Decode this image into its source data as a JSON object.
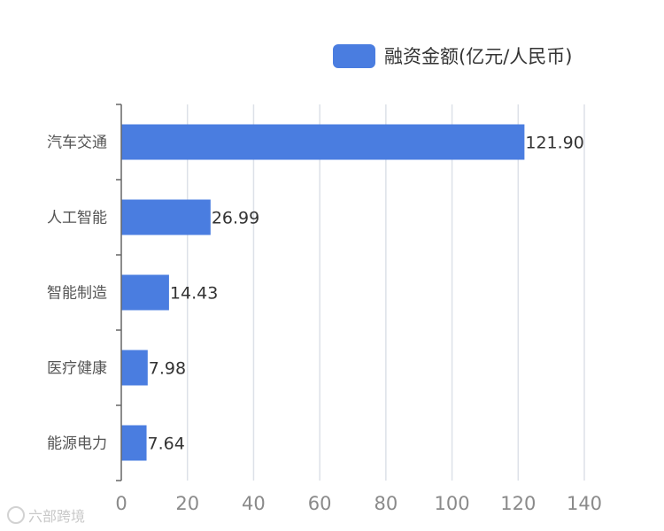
{
  "chart_data": {
    "type": "bar",
    "orientation": "horizontal",
    "categories": [
      "汽车交通",
      "人工智能",
      "智能制造",
      "医疗健康",
      "能源电力"
    ],
    "series": [
      {
        "name": "融资金额(亿元/人民币)",
        "values": [
          121.9,
          26.99,
          14.43,
          7.98,
          7.64
        ]
      }
    ],
    "data_labels": [
      "121.90",
      "26.99",
      "14.43",
      "7.98",
      "7.64"
    ],
    "xticks": [
      "0",
      "20",
      "40",
      "60",
      "80",
      "100",
      "120",
      "140"
    ],
    "xlim": [
      0,
      140
    ],
    "grid": true,
    "legend_position": "top-right",
    "colors": {
      "bar": "#4a7de0",
      "grid": "#dde1e8",
      "axis": "#666666"
    }
  },
  "watermark": {
    "text": "六部跨境"
  }
}
